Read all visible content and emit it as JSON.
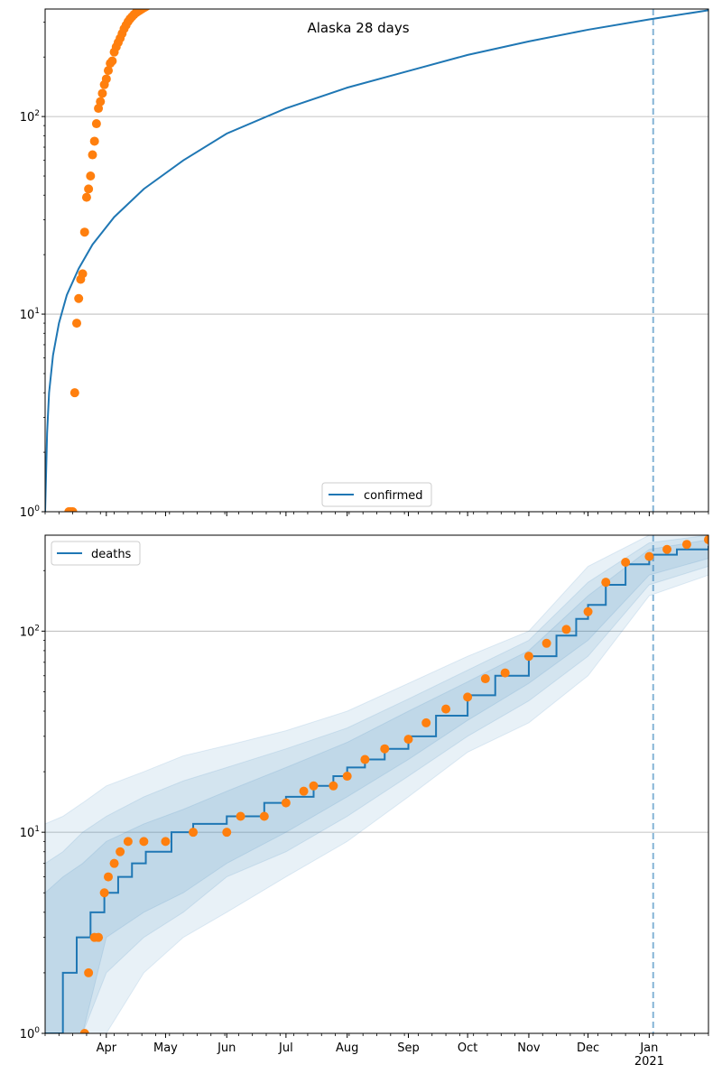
{
  "chart_data": [
    {
      "type": "line",
      "title": "Alaska 28 days",
      "yscale": "log",
      "ylim": [
        1,
        350
      ],
      "xlim": [
        "2020-03-01",
        "2021-01-31"
      ],
      "yticks": [
        {
          "value": 1,
          "label": "10^0"
        },
        {
          "value": 10,
          "label": "10^1"
        },
        {
          "value": 100,
          "label": "10^2"
        }
      ],
      "grid": "horizontal",
      "legend_position": "lower-center",
      "vline_date": "2021-01-03",
      "series": [
        {
          "name": "confirmed",
          "kind": "line",
          "color": "#1f77b4",
          "x": [
            "2020-03-01",
            "2020-03-02",
            "2020-03-03",
            "2020-03-05",
            "2020-03-08",
            "2020-03-12",
            "2020-03-18",
            "2020-03-25",
            "2020-04-05",
            "2020-04-20",
            "2020-05-10",
            "2020-06-01",
            "2020-07-01",
            "2020-08-01",
            "2020-09-01",
            "2020-10-01",
            "2020-11-01",
            "2020-12-01",
            "2021-01-01",
            "2021-01-31"
          ],
          "y": [
            1,
            2.5,
            4,
            6.2,
            9,
            12.5,
            17,
            22.5,
            31,
            43,
            60,
            82,
            110,
            140,
            170,
            205,
            240,
            275,
            310,
            345
          ]
        },
        {
          "name": "",
          "kind": "scatter",
          "color": "#ff7f0e",
          "x": [
            "2020-03-13",
            "2020-03-14",
            "2020-03-15",
            "2020-03-16",
            "2020-03-17",
            "2020-03-18",
            "2020-03-19",
            "2020-03-20",
            "2020-03-21",
            "2020-03-22",
            "2020-03-23",
            "2020-03-24",
            "2020-03-25",
            "2020-03-26",
            "2020-03-27",
            "2020-03-28",
            "2020-03-29",
            "2020-03-30",
            "2020-03-31",
            "2020-04-01",
            "2020-04-02",
            "2020-04-03",
            "2020-04-04",
            "2020-04-05",
            "2020-04-06",
            "2020-04-07",
            "2020-04-08",
            "2020-04-09",
            "2020-04-10",
            "2020-04-11",
            "2020-04-12",
            "2020-04-13",
            "2020-04-14",
            "2020-04-15",
            "2020-04-16",
            "2020-04-17",
            "2020-04-18",
            "2020-04-19",
            "2020-04-20",
            "2020-04-21",
            "2020-04-22",
            "2020-04-23",
            "2020-04-24",
            "2020-04-25"
          ],
          "y": [
            1,
            1,
            1,
            4,
            9,
            12,
            15,
            16,
            26,
            39,
            43,
            50,
            64,
            75,
            92,
            110,
            119,
            131,
            145,
            155,
            171,
            186,
            191,
            212,
            225,
            237,
            249,
            263,
            278,
            290,
            302,
            312,
            320,
            328,
            335,
            340,
            345,
            350,
            355,
            360,
            365,
            370,
            375,
            380
          ]
        }
      ]
    },
    {
      "type": "line",
      "yscale": "log",
      "ylim": [
        1,
        300
      ],
      "xlim": [
        "2020-03-01",
        "2021-01-31"
      ],
      "yticks": [
        {
          "value": 1,
          "label": "10^0"
        },
        {
          "value": 10,
          "label": "10^1"
        },
        {
          "value": 100,
          "label": "10^2"
        }
      ],
      "grid": "horizontal",
      "legend_position": "upper-left",
      "vline_date": "2021-01-03",
      "x_ticks": [
        {
          "date": "2020-04-01",
          "label": "Apr"
        },
        {
          "date": "2020-05-01",
          "label": "May"
        },
        {
          "date": "2020-06-01",
          "label": "Jun"
        },
        {
          "date": "2020-07-01",
          "label": "Jul"
        },
        {
          "date": "2020-08-01",
          "label": "Aug"
        },
        {
          "date": "2020-09-01",
          "label": "Sep"
        },
        {
          "date": "2020-10-01",
          "label": "Oct"
        },
        {
          "date": "2020-11-01",
          "label": "Nov"
        },
        {
          "date": "2020-12-01",
          "label": "Dec"
        },
        {
          "date": "2021-01-01",
          "label": "Jan"
        }
      ],
      "x_year_label": {
        "date": "2021-01-01",
        "label": "2021"
      },
      "bands": [
        {
          "x": [
            "2020-03-01",
            "2020-03-10",
            "2020-03-20",
            "2020-04-01",
            "2020-04-20",
            "2020-05-10",
            "2020-06-01",
            "2020-07-01",
            "2020-08-01",
            "2020-09-01",
            "2020-10-01",
            "2020-11-01",
            "2020-12-01",
            "2021-01-01",
            "2021-01-31"
          ],
          "lower": [
            1,
            1,
            1,
            1,
            2,
            3,
            4,
            6,
            9,
            15,
            25,
            35,
            60,
            150,
            190
          ],
          "upper": [
            11,
            12,
            14,
            17,
            20,
            24,
            27,
            32,
            40,
            55,
            75,
            100,
            210,
            300,
            300
          ]
        },
        {
          "x": [
            "2020-03-01",
            "2020-03-10",
            "2020-03-20",
            "2020-04-01",
            "2020-04-20",
            "2020-05-10",
            "2020-06-01",
            "2020-07-01",
            "2020-08-01",
            "2020-09-01",
            "2020-10-01",
            "2020-11-01",
            "2020-12-01",
            "2021-01-01",
            "2021-01-31"
          ],
          "lower": [
            1,
            1,
            1,
            2,
            3,
            4,
            6,
            8,
            12,
            19,
            30,
            45,
            75,
            170,
            210
          ],
          "upper": [
            7,
            8,
            10,
            12,
            15,
            18,
            21,
            26,
            33,
            46,
            64,
            90,
            175,
            275,
            300
          ]
        },
        {
          "x": [
            "2020-03-01",
            "2020-03-10",
            "2020-03-20",
            "2020-04-01",
            "2020-04-20",
            "2020-05-10",
            "2020-06-01",
            "2020-07-01",
            "2020-08-01",
            "2020-09-01",
            "2020-10-01",
            "2020-11-01",
            "2020-12-01",
            "2021-01-01",
            "2021-01-31"
          ],
          "lower": [
            1,
            1,
            1,
            3,
            4,
            5,
            7,
            10,
            15,
            23,
            36,
            55,
            90,
            190,
            230
          ],
          "upper": [
            5,
            6,
            7,
            9,
            11,
            13,
            16,
            21,
            28,
            40,
            56,
            80,
            150,
            255,
            285
          ]
        }
      ],
      "series": [
        {
          "name": "deaths",
          "kind": "step",
          "color": "#1f77b4",
          "x": [
            "2020-03-01",
            "2020-03-10",
            "2020-03-17",
            "2020-03-24",
            "2020-03-31",
            "2020-04-07",
            "2020-04-14",
            "2020-04-21",
            "2020-05-04",
            "2020-05-15",
            "2020-06-01",
            "2020-06-20",
            "2020-07-01",
            "2020-07-15",
            "2020-07-25",
            "2020-08-01",
            "2020-08-10",
            "2020-08-20",
            "2020-09-01",
            "2020-09-15",
            "2020-10-01",
            "2020-10-15",
            "2020-11-01",
            "2020-11-15",
            "2020-11-25",
            "2020-12-01",
            "2020-12-10",
            "2020-12-20",
            "2021-01-01",
            "2021-01-15",
            "2021-01-31"
          ],
          "y": [
            1,
            2,
            3,
            4,
            5,
            6,
            7,
            8,
            10,
            11,
            12,
            14,
            15,
            17,
            19,
            21,
            23,
            26,
            30,
            38,
            48,
            60,
            75,
            95,
            115,
            135,
            170,
            215,
            240,
            255,
            265
          ]
        },
        {
          "name": "",
          "kind": "scatter",
          "color": "#ff7f0e",
          "x": [
            "2020-03-21",
            "2020-03-23",
            "2020-03-26",
            "2020-03-28",
            "2020-03-31",
            "2020-04-02",
            "2020-04-05",
            "2020-04-08",
            "2020-04-12",
            "2020-04-20",
            "2020-05-01",
            "2020-05-15",
            "2020-06-01",
            "2020-06-08",
            "2020-06-20",
            "2020-07-01",
            "2020-07-10",
            "2020-07-15",
            "2020-07-25",
            "2020-08-01",
            "2020-08-10",
            "2020-08-20",
            "2020-09-01",
            "2020-09-10",
            "2020-09-20",
            "2020-10-01",
            "2020-10-10",
            "2020-10-20",
            "2020-11-01",
            "2020-11-10",
            "2020-11-20",
            "2020-12-01",
            "2020-12-10",
            "2020-12-20",
            "2021-01-01",
            "2021-01-10",
            "2021-01-20",
            "2021-01-31"
          ],
          "y": [
            1,
            2,
            3,
            3,
            5,
            6,
            7,
            8,
            9,
            9,
            9,
            10,
            10,
            12,
            12,
            14,
            16,
            17,
            17,
            19,
            23,
            26,
            29,
            35,
            41,
            47,
            58,
            62,
            75,
            87,
            102,
            125,
            175,
            220,
            235,
            255,
            270,
            285
          ]
        }
      ]
    }
  ]
}
